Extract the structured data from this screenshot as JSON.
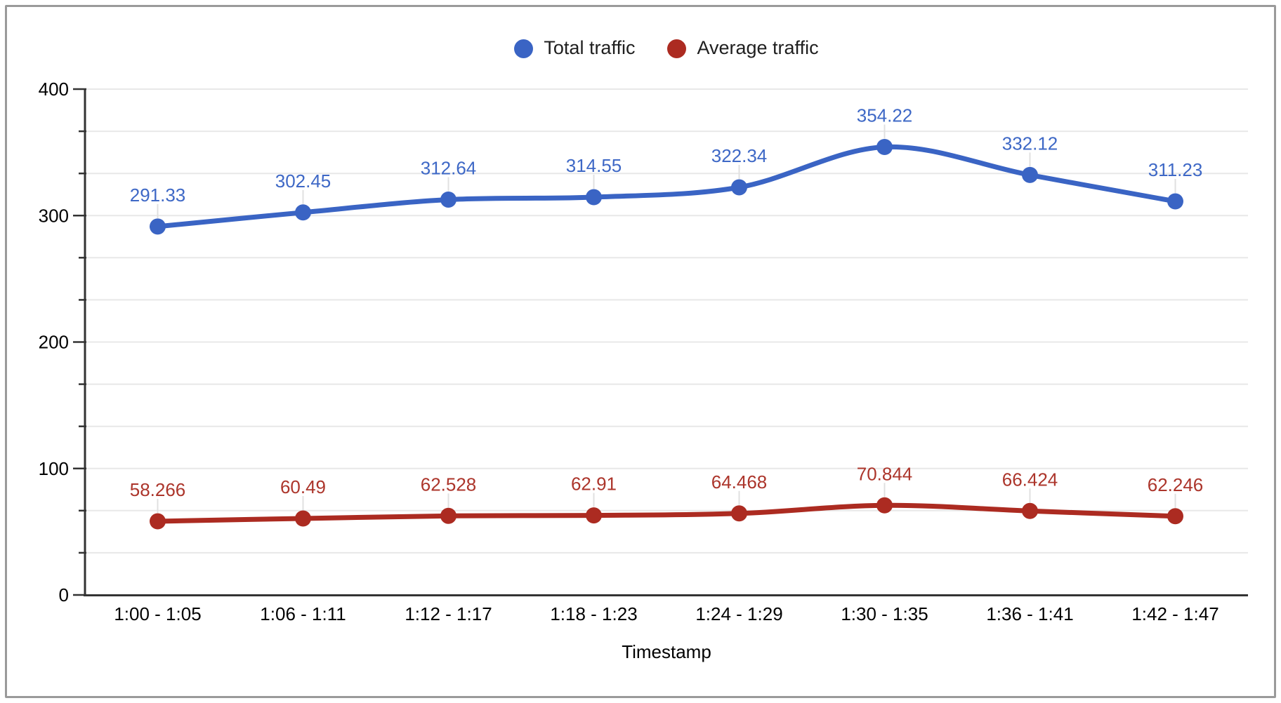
{
  "chart_data": {
    "type": "line",
    "title": "",
    "xlabel": "Timestamp",
    "ylabel": "",
    "categories": [
      "1:00 - 1:05",
      "1:06 - 1:11",
      "1:12 - 1:17",
      "1:18 - 1:23",
      "1:24 - 1:29",
      "1:30 - 1:35",
      "1:36 - 1:41",
      "1:42 - 1:47"
    ],
    "series": [
      {
        "name": "Total traffic",
        "color": "#3A64C4",
        "label_color": "#3E68C6",
        "values": [
          291.33,
          302.45,
          312.64,
          314.55,
          322.34,
          354.22,
          332.12,
          311.23
        ],
        "point_labels": [
          "291.33",
          "302.45",
          "312.64",
          "314.55",
          "322.34",
          "354.22",
          "332.12",
          "311.23"
        ]
      },
      {
        "name": "Average traffic",
        "color": "#AC2B21",
        "label_color": "#AC352B",
        "values": [
          58.266,
          60.49,
          62.528,
          62.91,
          64.468,
          70.844,
          66.424,
          62.246
        ],
        "point_labels": [
          "58.266",
          "60.49",
          "62.528",
          "62.91",
          "64.468",
          "70.844",
          "66.424",
          "62.246"
        ]
      }
    ],
    "ylim": [
      0,
      400
    ],
    "yticks": [
      0,
      100,
      200,
      300,
      400
    ],
    "ytick_labels": [
      "0",
      "100",
      "200",
      "300",
      "400"
    ],
    "minor_divisions_per_major": 3,
    "grid": true,
    "smooth": true,
    "legend_position": "top",
    "colors": {
      "gridline": "#E8E8E8",
      "axis": "#333333",
      "tick_label": "#000000",
      "leader_line": "#E0E0E0",
      "frame_border": "#9A9A9A",
      "background": "#FFFFFF"
    }
  }
}
